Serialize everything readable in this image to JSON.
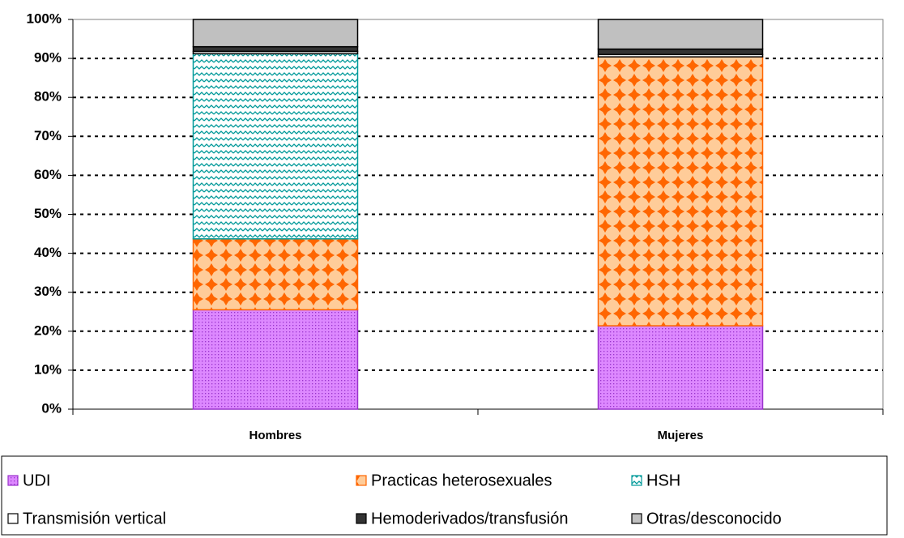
{
  "chart_data": {
    "type": "stacked_bar",
    "categories": [
      "Hombres",
      "Mujeres"
    ],
    "series": [
      {
        "name": "UDI",
        "color": "#9933cc",
        "background": "#dd88ff",
        "values": [
          25.5,
          21.4
        ]
      },
      {
        "name": "Practicas heterosexuales",
        "color": "#ff6600",
        "background": "#ffcc99",
        "values": [
          18.2,
          69.0
        ]
      },
      {
        "name": "HSH",
        "color": "#009999",
        "background": "#ffffff",
        "values": [
          47.5,
          0
        ]
      },
      {
        "name": "Transmisión vertical",
        "color": "#000000",
        "background": "#ffffff",
        "values": [
          0.6,
          0.6
        ]
      },
      {
        "name": "Hemoderivados/transfusión",
        "color": "#000000",
        "background": "#333333",
        "values": [
          1.2,
          1.4
        ]
      },
      {
        "name": "Otras/desconocido",
        "color": "#000000",
        "background": "#c0c0c0",
        "values": [
          7.0,
          7.6
        ]
      }
    ],
    "ylim": [
      0,
      100
    ],
    "yticks": [
      {
        "value": 0,
        "label": "0%"
      },
      {
        "value": 10,
        "label": "10%"
      },
      {
        "value": 20,
        "label": "20%"
      },
      {
        "value": 30,
        "label": "30%"
      },
      {
        "value": 40,
        "label": "40%"
      },
      {
        "value": 50,
        "label": "50%"
      },
      {
        "value": 60,
        "label": "60%"
      },
      {
        "value": 70,
        "label": "70%"
      },
      {
        "value": 80,
        "label": "80%"
      },
      {
        "value": 90,
        "label": "90%"
      },
      {
        "value": 100,
        "label": "100%"
      }
    ],
    "grid": true
  }
}
